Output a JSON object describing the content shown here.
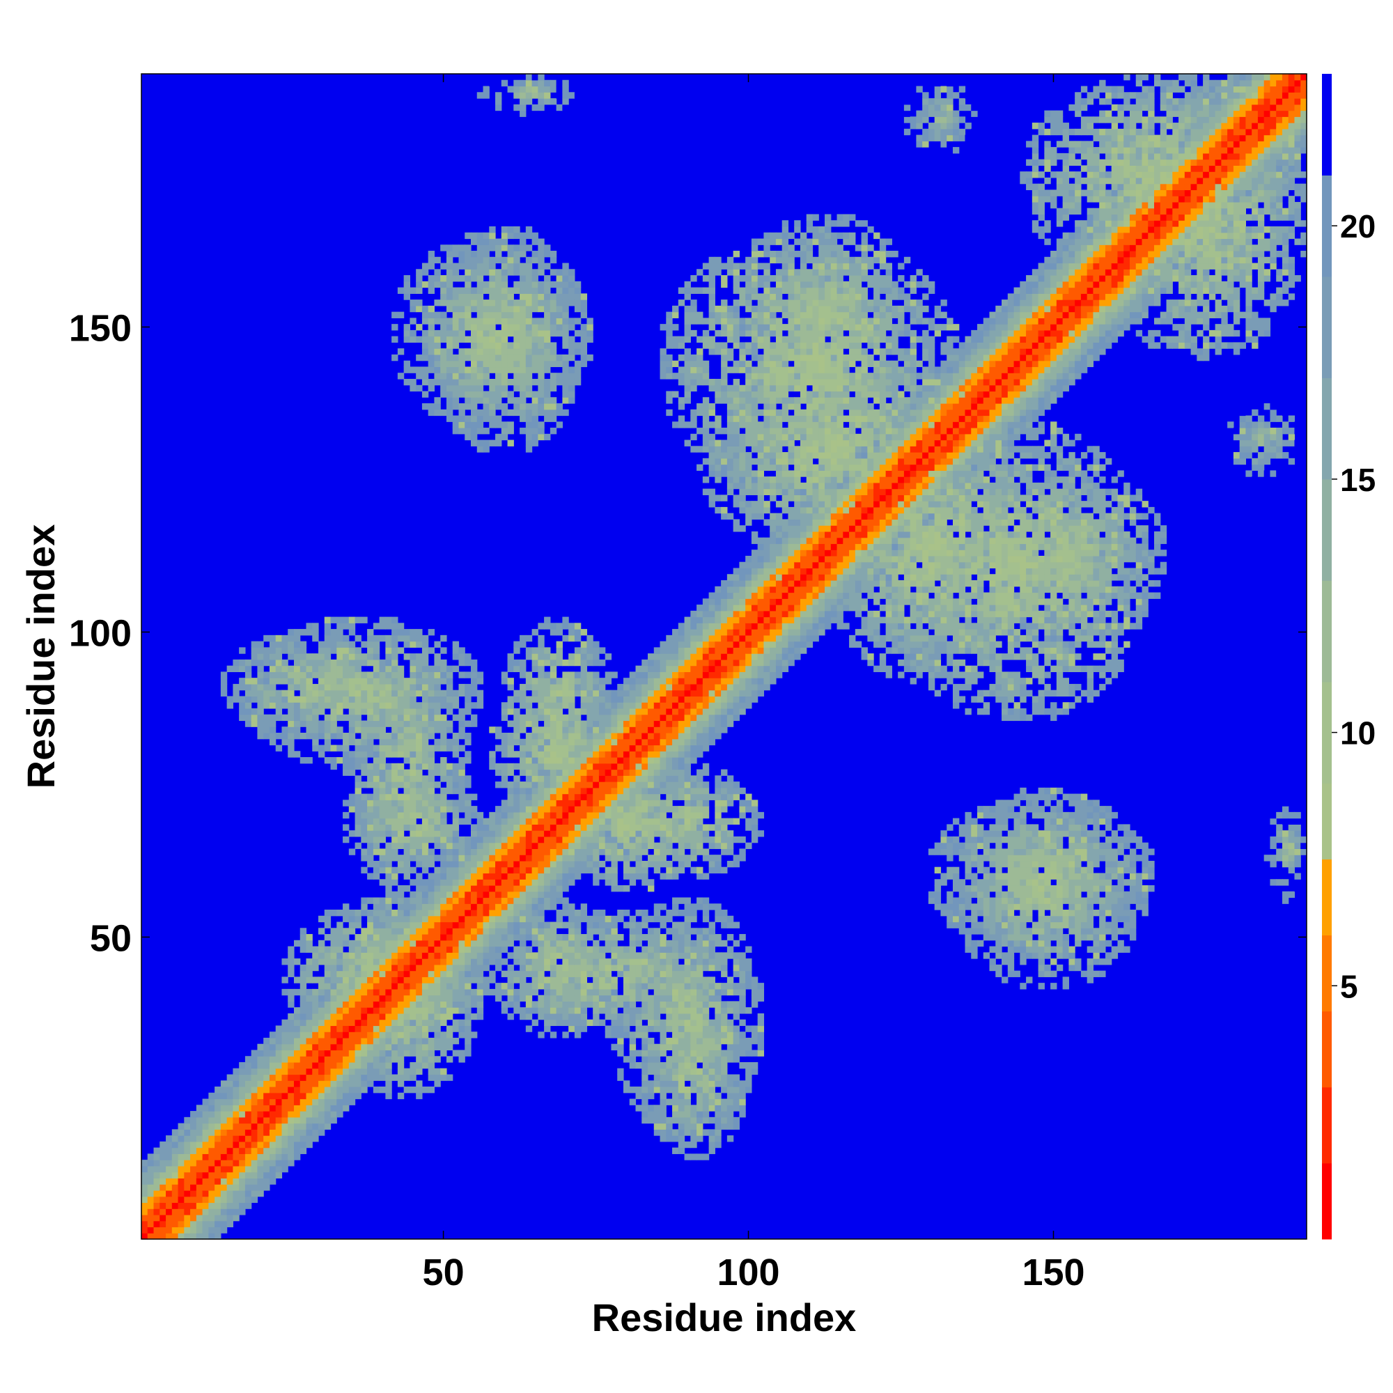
{
  "chart_data": {
    "type": "heatmap",
    "title": "",
    "xlabel": "Residue index",
    "ylabel": "Residue index",
    "n_residues": 191,
    "xlim": [
      1,
      191
    ],
    "ylim": [
      1,
      191
    ],
    "x_ticks": [
      50,
      100,
      150
    ],
    "y_ticks": [
      50,
      100,
      150
    ],
    "colorbar": {
      "ticks": [
        5,
        10,
        15,
        20
      ],
      "range": [
        0,
        23
      ],
      "levels": [
        {
          "max": 1.5,
          "color": "#ff0000"
        },
        {
          "max": 3.0,
          "color": "#ff2a00"
        },
        {
          "max": 4.5,
          "color": "#ff5a00"
        },
        {
          "max": 6.0,
          "color": "#ff7a00"
        },
        {
          "max": 7.5,
          "color": "#ffa000"
        },
        {
          "max": 9.0,
          "color": "#a9c289"
        },
        {
          "max": 11.0,
          "color": "#a4c08e"
        },
        {
          "max": 13.0,
          "color": "#9dba96"
        },
        {
          "max": 15.0,
          "color": "#90b0a2"
        },
        {
          "max": 17.0,
          "color": "#84a6ae"
        },
        {
          "max": 19.0,
          "color": "#7a9cb6"
        },
        {
          "max": 21.0,
          "color": "#7296bc"
        },
        {
          "max": 23.0,
          "color": "#0000f0"
        }
      ],
      "cutoff_color": "#0000f0"
    },
    "diagonal": {
      "red_max_offset": 3,
      "orange_max_offset": 5,
      "green_max_offset": 9,
      "blue_green_max_offset": 12
    },
    "contact_regions": [
      {
        "x": [
          14,
          44
        ],
        "y": [
          83,
          100
        ],
        "mean_distance": 14
      },
      {
        "x": [
          24,
          58
        ],
        "y": [
          32,
          56
        ],
        "mean_distance": 13
      },
      {
        "x": [
          34,
          54
        ],
        "y": [
          60,
          96
        ],
        "mean_distance": 14
      },
      {
        "x": [
          58,
          80
        ],
        "y": [
          67,
          93
        ],
        "mean_distance": 13
      },
      {
        "x": [
          78,
          102
        ],
        "y": [
          60,
          78
        ],
        "mean_distance": 14
      },
      {
        "x": [
          58,
          80
        ],
        "y": [
          34,
          56
        ],
        "mean_distance": 14
      },
      {
        "x": [
          78,
          102
        ],
        "y": [
          17,
          56
        ],
        "mean_distance": 14
      },
      {
        "x": [
          42,
          74
        ],
        "y": [
          133,
          165
        ],
        "mean_distance": 14
      },
      {
        "x": [
          56,
          72
        ],
        "y": [
          185,
          191
        ],
        "mean_distance": 16
      },
      {
        "x": [
          86,
          134
        ],
        "y": [
          123,
          165
        ],
        "mean_distance": 13
      },
      {
        "x": [
          112,
          148
        ],
        "y": [
          92,
          137
        ],
        "mean_distance": 13
      },
      {
        "x": [
          136,
          168
        ],
        "y": [
          98,
          127
        ],
        "mean_distance": 14
      },
      {
        "x": [
          130,
          166
        ],
        "y": [
          47,
          73
        ],
        "mean_distance": 14
      },
      {
        "x": [
          145,
          191
        ],
        "y": [
          158,
          191
        ],
        "mean_distance": 13
      },
      {
        "x": [
          178,
          191
        ],
        "y": [
          125,
          138
        ],
        "mean_distance": 17
      },
      {
        "x": [
          187,
          191
        ],
        "y": [
          60,
          70
        ],
        "mean_distance": 16
      }
    ]
  }
}
